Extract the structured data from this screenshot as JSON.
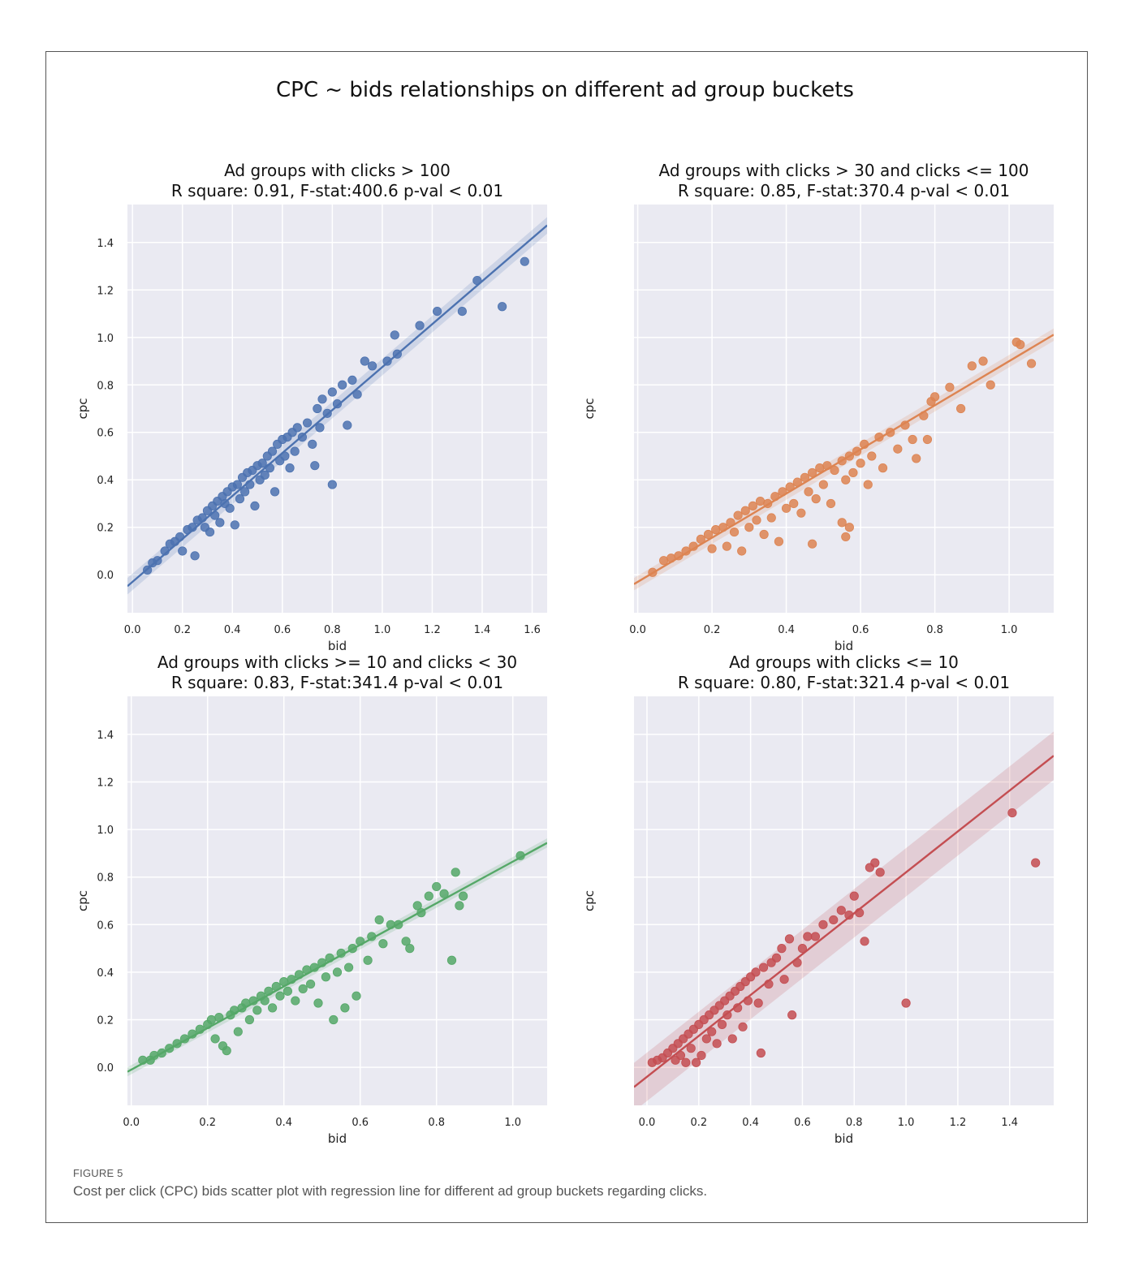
{
  "figure": {
    "label": "FIGURE 5",
    "caption": "Cost per click (CPC) bids scatter plot with regression line for different ad group buckets regarding clicks.",
    "suptitle": "CPC ~ bids relationships on different ad group buckets"
  },
  "chart_data": [
    {
      "type": "scatter",
      "title": "Ad groups with clicks > 100",
      "subtitle": "R square: 0.91, F-stat:400.6 p-val < 0.01",
      "xlabel": "bid",
      "ylabel": "cpc",
      "color": "#4c72b0",
      "xlim": [
        -0.02,
        1.66
      ],
      "ylim": [
        -0.16,
        1.56
      ],
      "xticks": [
        "0.0",
        "0.2",
        "0.4",
        "0.6",
        "0.8",
        "1.0",
        "1.2",
        "1.4",
        "1.6"
      ],
      "yticks": [
        "0.0",
        "0.2",
        "0.4",
        "0.6",
        "0.8",
        "1.0",
        "1.2",
        "1.4"
      ],
      "show_yticks": true,
      "grid": true,
      "regression": {
        "slope": 0.905,
        "intercept": -0.03,
        "ci_width": 0.02
      },
      "points": [
        [
          0.06,
          0.02
        ],
        [
          0.08,
          0.05
        ],
        [
          0.1,
          0.06
        ],
        [
          0.13,
          0.1
        ],
        [
          0.15,
          0.13
        ],
        [
          0.17,
          0.14
        ],
        [
          0.19,
          0.16
        ],
        [
          0.2,
          0.1
        ],
        [
          0.22,
          0.19
        ],
        [
          0.24,
          0.2
        ],
        [
          0.25,
          0.08
        ],
        [
          0.26,
          0.23
        ],
        [
          0.28,
          0.24
        ],
        [
          0.29,
          0.2
        ],
        [
          0.3,
          0.27
        ],
        [
          0.31,
          0.18
        ],
        [
          0.32,
          0.29
        ],
        [
          0.33,
          0.25
        ],
        [
          0.34,
          0.31
        ],
        [
          0.35,
          0.22
        ],
        [
          0.36,
          0.33
        ],
        [
          0.37,
          0.3
        ],
        [
          0.38,
          0.35
        ],
        [
          0.39,
          0.28
        ],
        [
          0.4,
          0.37
        ],
        [
          0.41,
          0.21
        ],
        [
          0.42,
          0.38
        ],
        [
          0.43,
          0.32
        ],
        [
          0.44,
          0.41
        ],
        [
          0.45,
          0.35
        ],
        [
          0.46,
          0.43
        ],
        [
          0.47,
          0.38
        ],
        [
          0.48,
          0.44
        ],
        [
          0.49,
          0.29
        ],
        [
          0.5,
          0.46
        ],
        [
          0.51,
          0.4
        ],
        [
          0.52,
          0.47
        ],
        [
          0.53,
          0.42
        ],
        [
          0.54,
          0.5
        ],
        [
          0.55,
          0.45
        ],
        [
          0.56,
          0.52
        ],
        [
          0.57,
          0.35
        ],
        [
          0.58,
          0.55
        ],
        [
          0.59,
          0.48
        ],
        [
          0.6,
          0.57
        ],
        [
          0.61,
          0.5
        ],
        [
          0.62,
          0.58
        ],
        [
          0.63,
          0.45
        ],
        [
          0.64,
          0.6
        ],
        [
          0.65,
          0.52
        ],
        [
          0.66,
          0.62
        ],
        [
          0.68,
          0.58
        ],
        [
          0.7,
          0.64
        ],
        [
          0.72,
          0.55
        ],
        [
          0.73,
          0.46
        ],
        [
          0.74,
          0.7
        ],
        [
          0.75,
          0.62
        ],
        [
          0.76,
          0.74
        ],
        [
          0.78,
          0.68
        ],
        [
          0.8,
          0.38
        ],
        [
          0.8,
          0.77
        ],
        [
          0.82,
          0.72
        ],
        [
          0.84,
          0.8
        ],
        [
          0.86,
          0.63
        ],
        [
          0.88,
          0.82
        ],
        [
          0.9,
          0.76
        ],
        [
          0.93,
          0.9
        ],
        [
          0.96,
          0.88
        ],
        [
          1.02,
          0.9
        ],
        [
          1.05,
          1.01
        ],
        [
          1.06,
          0.93
        ],
        [
          1.15,
          1.05
        ],
        [
          1.22,
          1.11
        ],
        [
          1.32,
          1.11
        ],
        [
          1.38,
          1.24
        ],
        [
          1.48,
          1.13
        ],
        [
          1.57,
          1.32
        ]
      ]
    },
    {
      "type": "scatter",
      "title": "Ad groups with clicks > 30 and clicks <= 100",
      "subtitle": "R square: 0.85, F-stat:370.4 p-val < 0.01",
      "xlabel": "bid",
      "ylabel": "cpc",
      "color": "#dd8452",
      "xlim": [
        -0.01,
        1.12
      ],
      "ylim": [
        -0.16,
        1.56
      ],
      "xticks": [
        "0.0",
        "0.2",
        "0.4",
        "0.6",
        "0.8",
        "1.0"
      ],
      "yticks": [
        "0.0",
        "0.2",
        "0.4",
        "0.6",
        "0.8",
        "1.0",
        "1.2",
        "1.4"
      ],
      "show_yticks": false,
      "grid": true,
      "regression": {
        "slope": 0.93,
        "intercept": -0.03,
        "ci_width": 0.02
      },
      "points": [
        [
          0.04,
          0.01
        ],
        [
          0.07,
          0.06
        ],
        [
          0.09,
          0.07
        ],
        [
          0.11,
          0.08
        ],
        [
          0.13,
          0.1
        ],
        [
          0.15,
          0.12
        ],
        [
          0.17,
          0.15
        ],
        [
          0.19,
          0.17
        ],
        [
          0.2,
          0.11
        ],
        [
          0.21,
          0.19
        ],
        [
          0.23,
          0.2
        ],
        [
          0.24,
          0.12
        ],
        [
          0.25,
          0.22
        ],
        [
          0.26,
          0.18
        ],
        [
          0.27,
          0.25
        ],
        [
          0.28,
          0.1
        ],
        [
          0.29,
          0.27
        ],
        [
          0.3,
          0.2
        ],
        [
          0.31,
          0.29
        ],
        [
          0.32,
          0.23
        ],
        [
          0.33,
          0.31
        ],
        [
          0.34,
          0.17
        ],
        [
          0.35,
          0.3
        ],
        [
          0.36,
          0.24
        ],
        [
          0.37,
          0.33
        ],
        [
          0.38,
          0.14
        ],
        [
          0.39,
          0.35
        ],
        [
          0.4,
          0.28
        ],
        [
          0.41,
          0.37
        ],
        [
          0.42,
          0.3
        ],
        [
          0.43,
          0.39
        ],
        [
          0.44,
          0.26
        ],
        [
          0.45,
          0.41
        ],
        [
          0.46,
          0.35
        ],
        [
          0.47,
          0.43
        ],
        [
          0.48,
          0.32
        ],
        [
          0.49,
          0.45
        ],
        [
          0.5,
          0.38
        ],
        [
          0.51,
          0.46
        ],
        [
          0.52,
          0.3
        ],
        [
          0.53,
          0.44
        ],
        [
          0.55,
          0.48
        ],
        [
          0.56,
          0.4
        ],
        [
          0.57,
          0.5
        ],
        [
          0.58,
          0.43
        ],
        [
          0.59,
          0.52
        ],
        [
          0.6,
          0.47
        ],
        [
          0.61,
          0.55
        ],
        [
          0.62,
          0.38
        ],
        [
          0.63,
          0.5
        ],
        [
          0.65,
          0.58
        ],
        [
          0.66,
          0.45
        ],
        [
          0.68,
          0.6
        ],
        [
          0.7,
          0.53
        ],
        [
          0.72,
          0.63
        ],
        [
          0.74,
          0.57
        ],
        [
          0.75,
          0.49
        ],
        [
          0.77,
          0.67
        ],
        [
          0.78,
          0.57
        ],
        [
          0.79,
          0.73
        ],
        [
          0.8,
          0.75
        ],
        [
          0.84,
          0.79
        ],
        [
          0.87,
          0.7
        ],
        [
          0.9,
          0.88
        ],
        [
          0.93,
          0.9
        ],
        [
          0.95,
          0.8
        ],
        [
          1.02,
          0.98
        ],
        [
          1.03,
          0.97
        ],
        [
          1.06,
          0.89
        ],
        [
          0.55,
          0.22
        ],
        [
          0.57,
          0.2
        ],
        [
          0.47,
          0.13
        ],
        [
          0.56,
          0.16
        ]
      ]
    },
    {
      "type": "scatter",
      "title": "Ad groups with clicks >= 10 and clicks < 30",
      "subtitle": "R square: 0.83, F-stat:341.4 p-val < 0.01",
      "xlabel": "bid",
      "ylabel": "cpc",
      "color": "#55a868",
      "xlim": [
        -0.01,
        1.09
      ],
      "ylim": [
        -0.16,
        1.56
      ],
      "xticks": [
        "0.0",
        "0.2",
        "0.4",
        "0.6",
        "0.8",
        "1.0"
      ],
      "yticks": [
        "0.0",
        "0.2",
        "0.4",
        "0.6",
        "0.8",
        "1.0",
        "1.2",
        "1.4"
      ],
      "show_yticks": true,
      "grid": true,
      "regression": {
        "slope": 0.875,
        "intercept": -0.01,
        "ci_width": 0.015
      },
      "points": [
        [
          0.03,
          0.03
        ],
        [
          0.05,
          0.03
        ],
        [
          0.06,
          0.05
        ],
        [
          0.08,
          0.06
        ],
        [
          0.1,
          0.08
        ],
        [
          0.12,
          0.1
        ],
        [
          0.14,
          0.12
        ],
        [
          0.16,
          0.14
        ],
        [
          0.18,
          0.16
        ],
        [
          0.2,
          0.18
        ],
        [
          0.21,
          0.2
        ],
        [
          0.22,
          0.12
        ],
        [
          0.23,
          0.21
        ],
        [
          0.24,
          0.09
        ],
        [
          0.25,
          0.07
        ],
        [
          0.26,
          0.22
        ],
        [
          0.27,
          0.24
        ],
        [
          0.28,
          0.15
        ],
        [
          0.29,
          0.25
        ],
        [
          0.3,
          0.27
        ],
        [
          0.31,
          0.2
        ],
        [
          0.32,
          0.28
        ],
        [
          0.33,
          0.24
        ],
        [
          0.34,
          0.3
        ],
        [
          0.35,
          0.28
        ],
        [
          0.36,
          0.32
        ],
        [
          0.37,
          0.25
        ],
        [
          0.38,
          0.34
        ],
        [
          0.39,
          0.3
        ],
        [
          0.4,
          0.36
        ],
        [
          0.41,
          0.32
        ],
        [
          0.42,
          0.37
        ],
        [
          0.43,
          0.28
        ],
        [
          0.44,
          0.39
        ],
        [
          0.45,
          0.33
        ],
        [
          0.46,
          0.41
        ],
        [
          0.47,
          0.35
        ],
        [
          0.48,
          0.42
        ],
        [
          0.49,
          0.27
        ],
        [
          0.5,
          0.44
        ],
        [
          0.51,
          0.38
        ],
        [
          0.52,
          0.46
        ],
        [
          0.53,
          0.2
        ],
        [
          0.54,
          0.4
        ],
        [
          0.55,
          0.48
        ],
        [
          0.56,
          0.25
        ],
        [
          0.57,
          0.42
        ],
        [
          0.58,
          0.5
        ],
        [
          0.59,
          0.3
        ],
        [
          0.6,
          0.53
        ],
        [
          0.62,
          0.45
        ],
        [
          0.63,
          0.55
        ],
        [
          0.65,
          0.62
        ],
        [
          0.66,
          0.52
        ],
        [
          0.68,
          0.6
        ],
        [
          0.7,
          0.6
        ],
        [
          0.72,
          0.53
        ],
        [
          0.73,
          0.5
        ],
        [
          0.75,
          0.68
        ],
        [
          0.76,
          0.65
        ],
        [
          0.78,
          0.72
        ],
        [
          0.8,
          0.76
        ],
        [
          0.82,
          0.73
        ],
        [
          0.84,
          0.45
        ],
        [
          0.85,
          0.82
        ],
        [
          0.86,
          0.68
        ],
        [
          0.87,
          0.72
        ],
        [
          1.02,
          0.89
        ]
      ]
    },
    {
      "type": "scatter",
      "title": "Ad groups with clicks <= 10",
      "subtitle": "R square: 0.80, F-stat:321.4 p-val < 0.01",
      "xlabel": "bid",
      "ylabel": "cpc",
      "color": "#c44e52",
      "xlim": [
        -0.05,
        1.57
      ],
      "ylim": [
        -0.16,
        1.56
      ],
      "xticks": [
        "0.0",
        "0.2",
        "0.4",
        "0.6",
        "0.8",
        "1.0",
        "1.2",
        "1.4"
      ],
      "yticks": [
        "0.0",
        "0.2",
        "0.4",
        "0.6",
        "0.8",
        "1.0",
        "1.2",
        "1.4"
      ],
      "show_yticks": false,
      "grid": true,
      "regression": {
        "slope": 0.86,
        "intercept": -0.04,
        "ci_width": 0.06
      },
      "points": [
        [
          0.02,
          0.02
        ],
        [
          0.04,
          0.03
        ],
        [
          0.06,
          0.04
        ],
        [
          0.08,
          0.06
        ],
        [
          0.1,
          0.08
        ],
        [
          0.11,
          0.03
        ],
        [
          0.12,
          0.1
        ],
        [
          0.13,
          0.05
        ],
        [
          0.14,
          0.12
        ],
        [
          0.15,
          0.02
        ],
        [
          0.16,
          0.14
        ],
        [
          0.17,
          0.08
        ],
        [
          0.18,
          0.16
        ],
        [
          0.19,
          0.02
        ],
        [
          0.2,
          0.18
        ],
        [
          0.21,
          0.05
        ],
        [
          0.22,
          0.2
        ],
        [
          0.23,
          0.12
        ],
        [
          0.24,
          0.22
        ],
        [
          0.25,
          0.15
        ],
        [
          0.26,
          0.24
        ],
        [
          0.27,
          0.1
        ],
        [
          0.28,
          0.26
        ],
        [
          0.29,
          0.18
        ],
        [
          0.3,
          0.28
        ],
        [
          0.31,
          0.22
        ],
        [
          0.32,
          0.3
        ],
        [
          0.33,
          0.12
        ],
        [
          0.34,
          0.32
        ],
        [
          0.35,
          0.25
        ],
        [
          0.36,
          0.34
        ],
        [
          0.37,
          0.17
        ],
        [
          0.38,
          0.36
        ],
        [
          0.39,
          0.28
        ],
        [
          0.4,
          0.38
        ],
        [
          0.42,
          0.4
        ],
        [
          0.43,
          0.27
        ],
        [
          0.44,
          0.06
        ],
        [
          0.45,
          0.42
        ],
        [
          0.47,
          0.35
        ],
        [
          0.48,
          0.44
        ],
        [
          0.5,
          0.46
        ],
        [
          0.52,
          0.5
        ],
        [
          0.53,
          0.37
        ],
        [
          0.55,
          0.54
        ],
        [
          0.56,
          0.22
        ],
        [
          0.58,
          0.44
        ],
        [
          0.6,
          0.5
        ],
        [
          0.62,
          0.55
        ],
        [
          0.65,
          0.55
        ],
        [
          0.68,
          0.6
        ],
        [
          0.72,
          0.62
        ],
        [
          0.75,
          0.66
        ],
        [
          0.78,
          0.64
        ],
        [
          0.8,
          0.72
        ],
        [
          0.82,
          0.65
        ],
        [
          0.84,
          0.53
        ],
        [
          0.86,
          0.84
        ],
        [
          0.88,
          0.86
        ],
        [
          0.9,
          0.82
        ],
        [
          1.0,
          0.27
        ],
        [
          1.41,
          1.07
        ],
        [
          1.5,
          0.86
        ]
      ]
    }
  ]
}
